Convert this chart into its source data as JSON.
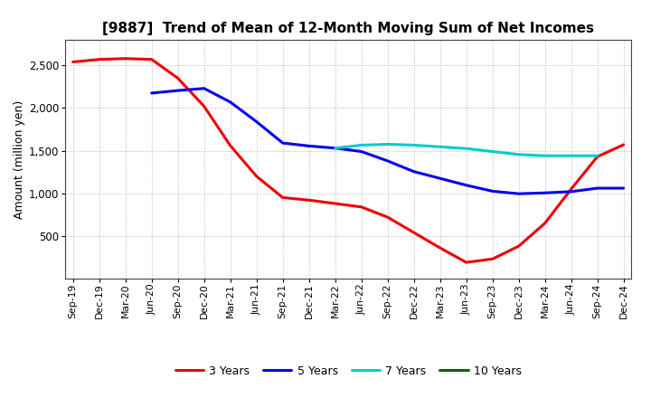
{
  "title": "[9887]  Trend of Mean of 12-Month Moving Sum of Net Incomes",
  "ylabel": "Amount (million yen)",
  "background_color": "#ffffff",
  "grid_color": "#bbbbbb",
  "x_labels": [
    "Sep-19",
    "Dec-19",
    "Mar-20",
    "Jun-20",
    "Sep-20",
    "Dec-20",
    "Mar-21",
    "Jun-21",
    "Sep-21",
    "Dec-21",
    "Mar-22",
    "Jun-22",
    "Sep-22",
    "Dec-22",
    "Mar-23",
    "Jun-23",
    "Sep-23",
    "Dec-23",
    "Mar-24",
    "Jun-24",
    "Sep-24",
    "Dec-24"
  ],
  "ylim": [
    0,
    2800
  ],
  "yticks": [
    500,
    1000,
    1500,
    2000,
    2500
  ],
  "series": {
    "3 Years": {
      "color": "#ee0000",
      "data": [
        2540,
        2570,
        2580,
        2570,
        2350,
        2020,
        1560,
        1200,
        950,
        920,
        880,
        840,
        720,
        540,
        360,
        190,
        230,
        380,
        650,
        1050,
        1430,
        1570
      ]
    },
    "5 Years": {
      "color": "#0000ee",
      "data": [
        null,
        null,
        null,
        2175,
        2205,
        2230,
        2070,
        1840,
        1590,
        1555,
        1530,
        1490,
        1380,
        1255,
        1175,
        1095,
        1025,
        995,
        1005,
        1020,
        1060,
        1060
      ]
    },
    "7 Years": {
      "color": "#00cccc",
      "data": [
        null,
        null,
        null,
        null,
        null,
        null,
        null,
        null,
        null,
        null,
        1530,
        1565,
        1575,
        1565,
        1545,
        1525,
        1490,
        1455,
        1440,
        1440,
        1440,
        null
      ]
    },
    "10 Years": {
      "color": "#006600",
      "data": [
        null,
        null,
        null,
        null,
        null,
        null,
        null,
        null,
        null,
        null,
        null,
        null,
        null,
        null,
        null,
        null,
        null,
        null,
        null,
        null,
        null,
        null
      ]
    }
  },
  "legend_order": [
    "3 Years",
    "5 Years",
    "7 Years",
    "10 Years"
  ]
}
